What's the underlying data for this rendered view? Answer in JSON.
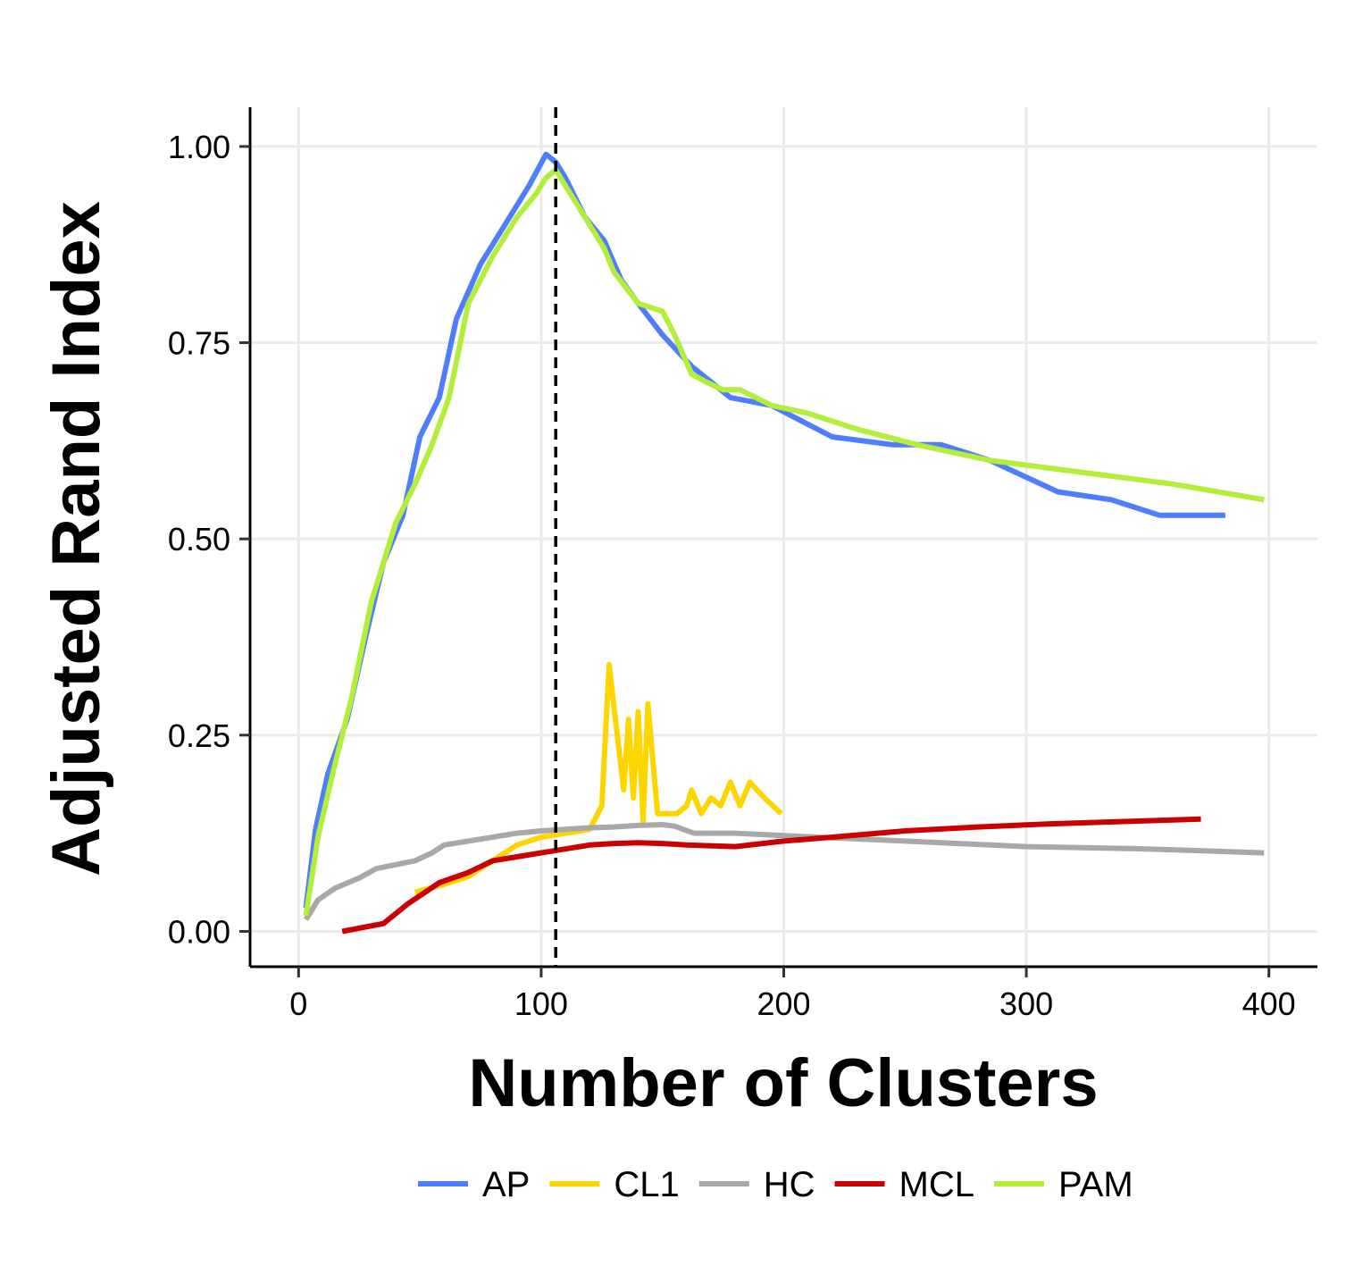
{
  "chart_data": {
    "type": "line",
    "title": "",
    "xlabel": "Number of Clusters",
    "ylabel": "Adjusted Rand Index",
    "xlim": [
      -20,
      420
    ],
    "ylim": [
      -0.045,
      1.05
    ],
    "xticks": [
      0,
      100,
      200,
      300,
      400
    ],
    "xtick_labels": [
      "0",
      "100",
      "200",
      "300",
      "400"
    ],
    "yticks": [
      0,
      0.25,
      0.5,
      0.75,
      1.0
    ],
    "ytick_labels": [
      "0.00",
      "0.25",
      "0.50",
      "0.75",
      "1.00"
    ],
    "grid": true,
    "legend_position": "bottom",
    "vline": {
      "x": 106,
      "style": "dashed",
      "color": "#000000"
    },
    "series": [
      {
        "name": "AP",
        "color": "#4E7EFF",
        "x": [
          3,
          7,
          12,
          20,
          28,
          35,
          43,
          50,
          58,
          65,
          75,
          85,
          95,
          102,
          106,
          110,
          118,
          126,
          133,
          140,
          150,
          162,
          178,
          195,
          220,
          245,
          265,
          285,
          313,
          335,
          355,
          382
        ],
        "y": [
          0.03,
          0.13,
          0.2,
          0.27,
          0.38,
          0.47,
          0.53,
          0.63,
          0.68,
          0.78,
          0.85,
          0.9,
          0.95,
          0.99,
          0.98,
          0.96,
          0.91,
          0.88,
          0.83,
          0.8,
          0.76,
          0.72,
          0.68,
          0.67,
          0.63,
          0.62,
          0.62,
          0.6,
          0.56,
          0.55,
          0.53,
          0.53
        ]
      },
      {
        "name": "CL1",
        "color": "#FFD500",
        "x": [
          48,
          60,
          70,
          80,
          90,
          100,
          110,
          120,
          125,
          128,
          131,
          134,
          136,
          138,
          140,
          142,
          144,
          146,
          148,
          152,
          156,
          160,
          162,
          166,
          170,
          174,
          178,
          182,
          186,
          192,
          199
        ],
        "y": [
          0.05,
          0.06,
          0.07,
          0.09,
          0.11,
          0.12,
          0.125,
          0.13,
          0.16,
          0.34,
          0.26,
          0.18,
          0.27,
          0.17,
          0.28,
          0.14,
          0.29,
          0.22,
          0.15,
          0.15,
          0.15,
          0.16,
          0.18,
          0.15,
          0.17,
          0.16,
          0.19,
          0.16,
          0.19,
          0.17,
          0.15
        ]
      },
      {
        "name": "HC",
        "color": "#A8A8A8",
        "x": [
          3,
          8,
          15,
          25,
          32,
          40,
          48,
          55,
          60,
          70,
          80,
          90,
          100,
          110,
          120,
          130,
          140,
          150,
          155,
          163,
          180,
          200,
          250,
          300,
          350,
          398
        ],
        "y": [
          0.015,
          0.04,
          0.055,
          0.068,
          0.08,
          0.085,
          0.09,
          0.1,
          0.11,
          0.115,
          0.12,
          0.125,
          0.128,
          0.13,
          0.132,
          0.133,
          0.135,
          0.136,
          0.134,
          0.125,
          0.125,
          0.122,
          0.115,
          0.108,
          0.105,
          0.1
        ]
      },
      {
        "name": "MCL",
        "color": "#CC0000",
        "x": [
          18,
          35,
          45,
          58,
          70,
          80,
          90,
          100,
          110,
          120,
          130,
          140,
          150,
          160,
          180,
          200,
          220,
          250,
          280,
          310,
          340,
          372
        ],
        "y": [
          0.0,
          0.01,
          0.035,
          0.062,
          0.075,
          0.09,
          0.095,
          0.1,
          0.105,
          0.11,
          0.112,
          0.113,
          0.112,
          0.11,
          0.108,
          0.115,
          0.12,
          0.128,
          0.133,
          0.137,
          0.14,
          0.143
        ]
      },
      {
        "name": "PAM",
        "color": "#B3EE3A",
        "x": [
          3,
          8,
          14,
          22,
          30,
          40,
          48,
          55,
          62,
          70,
          80,
          90,
          98,
          102,
          106,
          112,
          118,
          126,
          130,
          140,
          150,
          155,
          162,
          168,
          175,
          182,
          195,
          210,
          230,
          255,
          285,
          310,
          335,
          360,
          398
        ],
        "y": [
          0.02,
          0.12,
          0.2,
          0.3,
          0.42,
          0.52,
          0.57,
          0.62,
          0.68,
          0.8,
          0.86,
          0.91,
          0.94,
          0.96,
          0.97,
          0.94,
          0.91,
          0.87,
          0.84,
          0.8,
          0.79,
          0.76,
          0.71,
          0.7,
          0.69,
          0.69,
          0.67,
          0.66,
          0.64,
          0.62,
          0.6,
          0.59,
          0.58,
          0.57,
          0.55
        ]
      }
    ]
  }
}
